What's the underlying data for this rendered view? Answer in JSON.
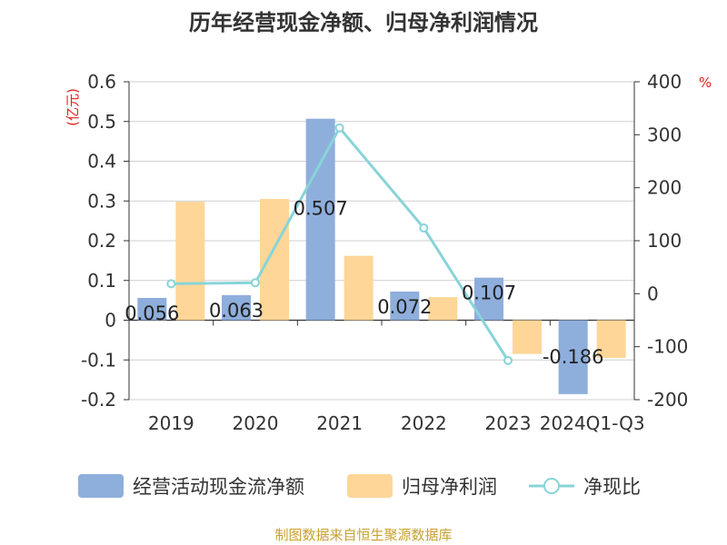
{
  "chart_data": {
    "type": "bar",
    "title": "历年经营现金净额、归母净利润情况",
    "categories": [
      "2019",
      "2020",
      "2021",
      "2022",
      "2023",
      "2024Q1-Q3"
    ],
    "y_left": {
      "unit": "(亿元)",
      "ylim": [
        -0.2,
        0.6
      ],
      "ticks": [
        "0.6",
        "0.5",
        "0.4",
        "0.3",
        "0.2",
        "0.1",
        "0",
        "-0.1",
        "-0.2"
      ]
    },
    "y_right": {
      "unit": "%",
      "ylim": [
        -200,
        400
      ],
      "ticks": [
        "400",
        "300",
        "200",
        "100",
        "0",
        "-100",
        "-200"
      ]
    },
    "series": [
      {
        "name": "经营活动现金流净额",
        "type": "bar",
        "axis": "left",
        "color": "#8eaedc",
        "values": [
          0.056,
          0.063,
          0.507,
          0.072,
          0.107,
          -0.186
        ],
        "labels": [
          "0.056",
          "0.063",
          "0.507",
          "0.072",
          "0.107",
          "-0.186"
        ]
      },
      {
        "name": "归母净利润",
        "type": "bar",
        "axis": "left",
        "color": "#fdd698",
        "values": [
          0.298,
          0.305,
          0.162,
          0.058,
          -0.085,
          -0.095
        ]
      },
      {
        "name": "净现比",
        "type": "line",
        "axis": "right",
        "color": "#88d4d8",
        "values": [
          18.8,
          20.7,
          312.9,
          124.1,
          -126.0,
          null
        ]
      }
    ],
    "grid": true,
    "legend_position": "bottom"
  },
  "source": "制图数据来自恒生聚源数据库"
}
